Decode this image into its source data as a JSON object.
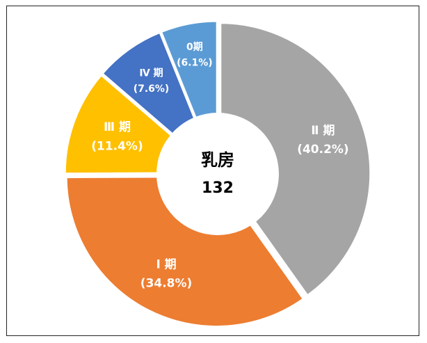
{
  "chart_data": {
    "type": "donut",
    "center_label": "乳房",
    "center_value": "132",
    "slices": [
      {
        "name": "Ⅱ 期",
        "pct_label": "(40.2%)",
        "value": 40.2,
        "color": "#A5A5A5",
        "label_color": "#ffffff"
      },
      {
        "name": "Ⅰ 期",
        "pct_label": "(34.8%)",
        "value": 34.8,
        "color": "#ED7D31",
        "label_color": "#ffffff"
      },
      {
        "name": "Ⅲ 期",
        "pct_label": "(11.4%)",
        "value": 11.4,
        "color": "#FFC000",
        "label_color": "#ffffff"
      },
      {
        "name": "Ⅳ 期",
        "pct_label": "(7.6%)",
        "value": 7.6,
        "color": "#4472C4",
        "label_color": "#ffffff"
      },
      {
        "name": "0期",
        "pct_label": "(6.1%)",
        "value": 6.1,
        "color": "#5B9BD5",
        "label_color": "#ffffff"
      }
    ]
  }
}
